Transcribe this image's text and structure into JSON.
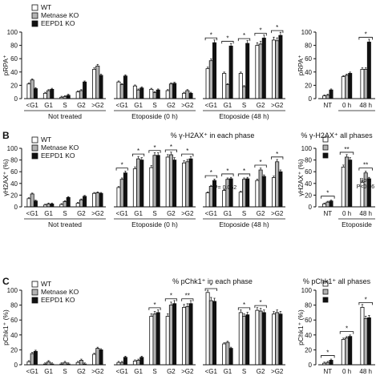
{
  "colors": {
    "wt": "#ffffff",
    "ko": "#b3b3b3",
    "eepd1": "#111111",
    "stroke": "#111111"
  },
  "legend": [
    "WT",
    "Metnase KO",
    "EEPD1 KO"
  ],
  "panel_letters": [
    "B",
    "C"
  ],
  "section_titles": {
    "B": {
      "phase": "% γ-H2AX⁺ in each phase",
      "all": "% γ-H2AX⁺ all phases"
    },
    "C": {
      "phase": "% pChk1⁺ in each phase",
      "all": "% pChk1⁺ all phases"
    }
  },
  "ylabels": [
    "pRPA⁺",
    "γH2AX⁺ (%)",
    "pChk1⁺ (%)"
  ],
  "group_labels": [
    "Not treated",
    "Etoposide (0 h)",
    "Etoposide (48 h)"
  ],
  "all_phase_group_label": "Etoposide",
  "annotations": {
    "p_value": "P= 0.052",
    "both": "Both",
    "both_p": "P<0.06"
  },
  "chart_data": [
    {
      "type": "bar",
      "panel": "A",
      "ylabel": "pRPA⁺",
      "ylim": [
        0,
        100
      ],
      "yticks": [
        0,
        20,
        40,
        60,
        80,
        100
      ],
      "categories": [
        "<G1",
        "G1",
        "S",
        "G2",
        ">G2",
        "<G1",
        "G1",
        "S",
        "G2",
        ">G2",
        "<G1",
        "G1",
        "S",
        "G2",
        ">G2"
      ],
      "groups": [
        "Not treated",
        "Not treated",
        "Not treated",
        "Not treated",
        "Not treated",
        "Etoposide (0 h)",
        "Etoposide (0 h)",
        "Etoposide (0 h)",
        "Etoposide (0 h)",
        "Etoposide (0 h)",
        "Etoposide (48 h)",
        "Etoposide (48 h)",
        "Etoposide (48 h)",
        "Etoposide (48 h)",
        "Etoposide (48 h)"
      ],
      "series": [
        {
          "name": "WT",
          "values": [
            22,
            8,
            2,
            10,
            44,
            25,
            19,
            14,
            12,
            8,
            45,
            38,
            38,
            80,
            88
          ]
        },
        {
          "name": "Metnase KO",
          "values": [
            28,
            12,
            3,
            12,
            49,
            21,
            13,
            9,
            22,
            12,
            57,
            21,
            18,
            82,
            87
          ]
        },
        {
          "name": "EEPD1 KO",
          "values": [
            15,
            14,
            5,
            25,
            35,
            34,
            16,
            13,
            23,
            8,
            84,
            79,
            83,
            91,
            95
          ]
        }
      ],
      "significance_brackets": 5,
      "star_labels": [
        "*",
        "*"
      ]
    },
    {
      "type": "bar",
      "panel": "A-all",
      "ylabel": "pRPA⁺",
      "ylim": [
        0,
        100
      ],
      "yticks": [
        0,
        20,
        40,
        60,
        80,
        100
      ],
      "categories": [
        "NT",
        "0 h",
        "48 h"
      ],
      "series": [
        {
          "name": "WT",
          "values": [
            4,
            33,
            44
          ]
        },
        {
          "name": "Metnase KO",
          "values": [
            5,
            35,
            44
          ]
        },
        {
          "name": "EEPD1 KO",
          "values": [
            13,
            38,
            85
          ]
        }
      ],
      "significance_brackets": 1
    },
    {
      "type": "bar",
      "panel": "B",
      "ylabel": "γH2AX⁺ (%)",
      "ylim": [
        0,
        100
      ],
      "yticks": [
        0,
        20,
        40,
        60,
        80,
        100
      ],
      "categories": [
        "<G1",
        "G1",
        "S",
        "G2",
        ">G2",
        "<G1",
        "G1",
        "S",
        "G2",
        ">G2",
        "<G1",
        "G1",
        "S",
        "G2",
        ">G2"
      ],
      "series": [
        {
          "name": "WT",
          "values": [
            14,
            3,
            4,
            6,
            23,
            33,
            65,
            67,
            85,
            75,
            24,
            28,
            25,
            45,
            50
          ]
        },
        {
          "name": "Metnase KO",
          "values": [
            22,
            5,
            9,
            12,
            24,
            47,
            82,
            88,
            89,
            77,
            35,
            47,
            47,
            63,
            77
          ]
        },
        {
          "name": "EEPD1 KO",
          "values": [
            10,
            5,
            16,
            18,
            23,
            58,
            80,
            88,
            80,
            82,
            45,
            48,
            48,
            52,
            60
          ]
        }
      ],
      "significance_brackets": 10,
      "star_labels": [
        "*",
        "*",
        "*",
        "*",
        "*",
        "*",
        "*",
        "*",
        "*",
        "*"
      ]
    },
    {
      "type": "bar",
      "panel": "B-all",
      "ylabel": "γH2AX⁺ (%)",
      "ylim": [
        0,
        100
      ],
      "yticks": [
        0,
        20,
        40,
        60,
        80,
        100
      ],
      "categories": [
        "NT",
        "0 h",
        "48 h"
      ],
      "series": [
        {
          "name": "WT",
          "values": [
            5,
            68,
            42
          ]
        },
        {
          "name": "Metnase KO",
          "values": [
            8,
            85,
            58
          ]
        },
        {
          "name": "EEPD1 KO",
          "values": [
            10,
            80,
            48
          ]
        }
      ],
      "significance_brackets": 3,
      "star_labels": [
        "*",
        "**",
        "**"
      ]
    },
    {
      "type": "bar",
      "panel": "C",
      "ylabel": "pChk1⁺ (%)",
      "ylim": [
        0,
        100
      ],
      "yticks": [
        0,
        20,
        40,
        60,
        80,
        100
      ],
      "categories": [
        "<G1",
        "G1",
        "S",
        "G2",
        ">G2",
        "<G1",
        "G1",
        "S",
        "G2",
        ">G2",
        "<G1",
        "G1",
        "S",
        "G2",
        ">G2"
      ],
      "series": [
        {
          "name": "WT",
          "values": [
            4,
            1,
            1,
            3,
            14,
            3,
            5,
            65,
            65,
            77,
            97,
            28,
            70,
            73,
            68
          ]
        },
        {
          "name": "Metnase KO",
          "values": [
            15,
            4,
            3,
            6,
            22,
            3,
            6,
            68,
            80,
            78,
            86,
            30,
            65,
            72,
            70
          ]
        },
        {
          "name": "EEPD1 KO",
          "values": [
            18,
            1,
            1,
            1,
            20,
            10,
            10,
            70,
            82,
            82,
            85,
            22,
            67,
            70,
            68
          ]
        }
      ],
      "significance_brackets": 6,
      "star_labels": [
        "*",
        "*",
        "**",
        "*",
        "*",
        "*"
      ]
    },
    {
      "type": "bar",
      "panel": "C-all",
      "ylabel": "pChk1⁺ (%)",
      "ylim": [
        0,
        100
      ],
      "yticks": [
        0,
        20,
        40,
        60,
        80,
        100
      ],
      "categories": [
        "NT",
        "0 h",
        "48 h"
      ],
      "series": [
        {
          "name": "WT",
          "values": [
            2,
            34,
            77
          ]
        },
        {
          "name": "Metnase KO",
          "values": [
            3,
            36,
            62
          ]
        },
        {
          "name": "EEPD1 KO",
          "values": [
            6,
            38,
            63
          ]
        }
      ],
      "significance_brackets": 3,
      "star_labels": [
        "*",
        "*",
        "*"
      ]
    }
  ]
}
